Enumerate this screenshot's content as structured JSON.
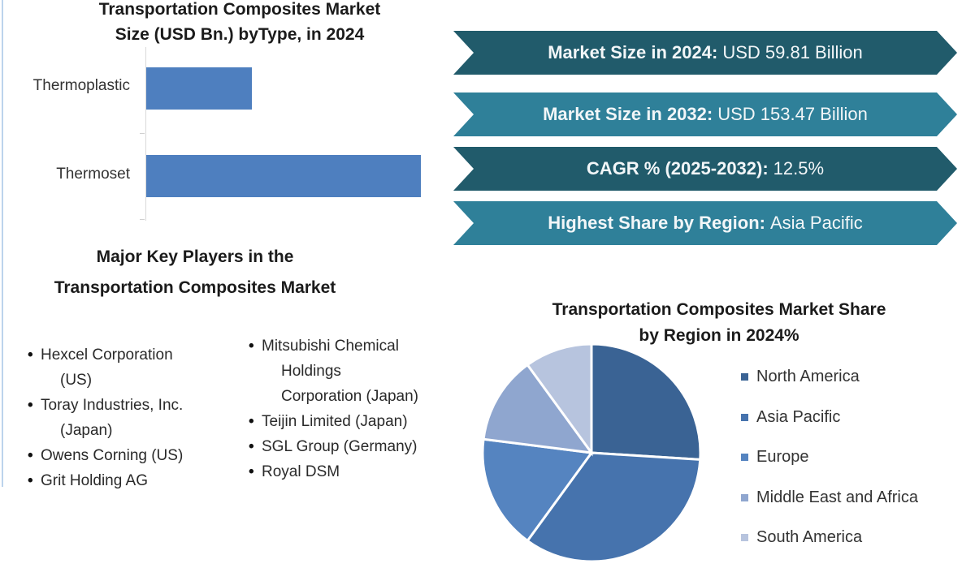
{
  "bar_chart": {
    "title_line1": "Transportation Composites Market",
    "title_line2": "Size (USD Bn.) byType, in 2024"
  },
  "banners": [
    {
      "key": "Market Size in 2024:",
      "value": "USD 59.81 Billion",
      "style": "dark"
    },
    {
      "key": "Market Size in 2032:",
      "value": "USD 153.47 Billion",
      "style": "light"
    },
    {
      "key": "CAGR % (2025-2032):",
      "value": "12.5%",
      "style": "dark"
    },
    {
      "key": "Highest Share by Region:",
      "value": "Asia Pacific",
      "style": "light"
    }
  ],
  "key_players": {
    "title_line1": "Major Key Players in the",
    "title_line2": "Transportation Composites Market",
    "column1": [
      {
        "line1": "Hexcel Corporation",
        "line2": "(US)"
      },
      {
        "line1": "Toray Industries, Inc.",
        "line2": "(Japan)"
      },
      {
        "line1": "Owens Corning (US)"
      },
      {
        "line1": "Grit Holding AG"
      }
    ],
    "column2": [
      {
        "line1": "Mitsubishi Chemical",
        "line2": "Holdings",
        "line3": "Corporation (Japan)"
      },
      {
        "line1": "Teijin Limited (Japan)"
      },
      {
        "line1": "SGL Group (Germany)"
      },
      {
        "line1": "Royal DSM"
      }
    ]
  },
  "pie_chart": {
    "title_line1": "Transportation Composites Market Share",
    "title_line2": "by Region in 2024%"
  },
  "colors": {
    "banner_dark": "#215b6b",
    "banner_light": "#2f8099",
    "bar": "#4e7fbf"
  },
  "chart_data": [
    {
      "type": "bar",
      "orientation": "horizontal",
      "title": "Transportation Composites Market Size (USD Bn.) byType, in 2024",
      "categories": [
        "Thermoplastic",
        "Thermoset"
      ],
      "values": [
        16.6,
        43.2
      ],
      "xlabel": "",
      "ylabel": "",
      "grid": false,
      "legend": null,
      "note": "No value axis shown; values estimated from bar length proportion of USD 59.81 Bn total"
    },
    {
      "type": "pie",
      "title": "Transportation Composites Market Share by Region in 2024%",
      "categories": [
        "North America",
        "Asia Pacific",
        "Europe",
        "Middle East and Africa",
        "South America"
      ],
      "values": [
        26,
        34,
        17,
        13,
        10
      ],
      "colors": [
        "#3a6394",
        "#4673ad",
        "#5584c0",
        "#8fa6cf",
        "#b7c4de"
      ],
      "legend_position": "right",
      "note": "Shares estimated from slice angles; no data labels shown"
    }
  ]
}
